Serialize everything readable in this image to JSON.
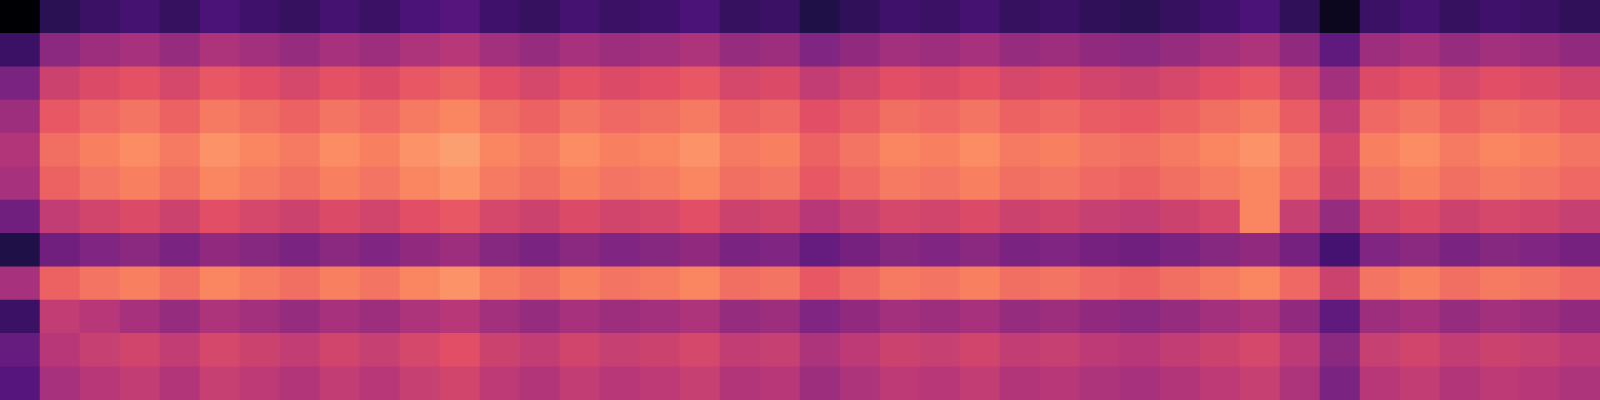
{
  "chart_data": {
    "type": "heatmap",
    "tick_labels": false,
    "zlim": [
      0,
      75
    ],
    "cells": [
      [
        0,
        12,
        15,
        17,
        14,
        18,
        16,
        14,
        17,
        15,
        18,
        20,
        16,
        14,
        17,
        15,
        16,
        18,
        14,
        15,
        10,
        13,
        16,
        15,
        17,
        14,
        15,
        13,
        12,
        14,
        16,
        18,
        13,
        4,
        15,
        17,
        14,
        16,
        15,
        13
      ],
      [
        15,
        30,
        33,
        35,
        32,
        36,
        34,
        32,
        35,
        33,
        36,
        38,
        34,
        32,
        35,
        33,
        34,
        36,
        32,
        33,
        28,
        31,
        34,
        33,
        35,
        32,
        33,
        31,
        30,
        32,
        34,
        36,
        31,
        22,
        33,
        35,
        32,
        34,
        33,
        31
      ],
      [
        27,
        42,
        45,
        47,
        44,
        48,
        46,
        44,
        47,
        45,
        48,
        50,
        46,
        44,
        47,
        45,
        46,
        48,
        44,
        45,
        40,
        43,
        46,
        45,
        47,
        44,
        45,
        43,
        42,
        44,
        46,
        48,
        43,
        34,
        45,
        47,
        44,
        46,
        45,
        43
      ],
      [
        33,
        48,
        51,
        53,
        50,
        54,
        52,
        50,
        53,
        51,
        54,
        56,
        52,
        50,
        53,
        51,
        52,
        54,
        50,
        51,
        46,
        49,
        52,
        51,
        53,
        50,
        51,
        49,
        48,
        50,
        52,
        54,
        49,
        40,
        51,
        53,
        50,
        52,
        51,
        49
      ],
      [
        37,
        52,
        55,
        57,
        54,
        58,
        56,
        54,
        57,
        55,
        58,
        60,
        56,
        54,
        57,
        55,
        56,
        58,
        54,
        55,
        50,
        53,
        56,
        55,
        57,
        54,
        55,
        53,
        52,
        54,
        56,
        58,
        53,
        44,
        55,
        57,
        54,
        56,
        55,
        53
      ],
      [
        35,
        50,
        53,
        55,
        52,
        56,
        54,
        52,
        55,
        53,
        56,
        58,
        54,
        52,
        55,
        53,
        54,
        56,
        52,
        53,
        48,
        51,
        54,
        53,
        55,
        52,
        53,
        51,
        50,
        52,
        54,
        56,
        51,
        42,
        53,
        55,
        52,
        54,
        53,
        51
      ],
      [
        25,
        40,
        43,
        45,
        42,
        46,
        44,
        42,
        45,
        43,
        46,
        48,
        44,
        42,
        45,
        43,
        44,
        46,
        42,
        43,
        38,
        41,
        44,
        43,
        45,
        42,
        43,
        41,
        40,
        42,
        44,
        56,
        41,
        32,
        43,
        45,
        42,
        44,
        43,
        41
      ],
      [
        10,
        25,
        28,
        30,
        27,
        31,
        29,
        27,
        30,
        28,
        31,
        33,
        29,
        27,
        30,
        28,
        29,
        31,
        27,
        28,
        23,
        26,
        29,
        28,
        30,
        27,
        28,
        26,
        25,
        27,
        29,
        31,
        26,
        17,
        28,
        30,
        27,
        29,
        28,
        26
      ],
      [
        35,
        50,
        53,
        55,
        52,
        56,
        54,
        52,
        55,
        53,
        56,
        58,
        54,
        52,
        55,
        53,
        54,
        56,
        52,
        53,
        48,
        51,
        54,
        53,
        55,
        52,
        53,
        51,
        50,
        52,
        54,
        56,
        51,
        42,
        53,
        55,
        52,
        54,
        53,
        51
      ],
      [
        15,
        40,
        38,
        35,
        32,
        36,
        34,
        32,
        35,
        33,
        36,
        38,
        34,
        32,
        35,
        33,
        34,
        36,
        32,
        33,
        28,
        31,
        34,
        33,
        35,
        32,
        33,
        31,
        30,
        32,
        34,
        36,
        31,
        22,
        33,
        35,
        32,
        34,
        33,
        31
      ],
      [
        23,
        38,
        41,
        43,
        40,
        44,
        42,
        40,
        43,
        41,
        44,
        46,
        42,
        40,
        43,
        41,
        42,
        44,
        40,
        41,
        36,
        39,
        42,
        41,
        43,
        40,
        41,
        39,
        38,
        40,
        42,
        44,
        39,
        30,
        41,
        43,
        40,
        42,
        41,
        39
      ],
      [
        20,
        35,
        38,
        40,
        37,
        41,
        39,
        37,
        40,
        38,
        41,
        43,
        39,
        37,
        40,
        38,
        39,
        41,
        37,
        38,
        33,
        36,
        39,
        38,
        40,
        37,
        38,
        36,
        35,
        37,
        39,
        41,
        36,
        27,
        38,
        40,
        37,
        39,
        38,
        36
      ]
    ]
  }
}
